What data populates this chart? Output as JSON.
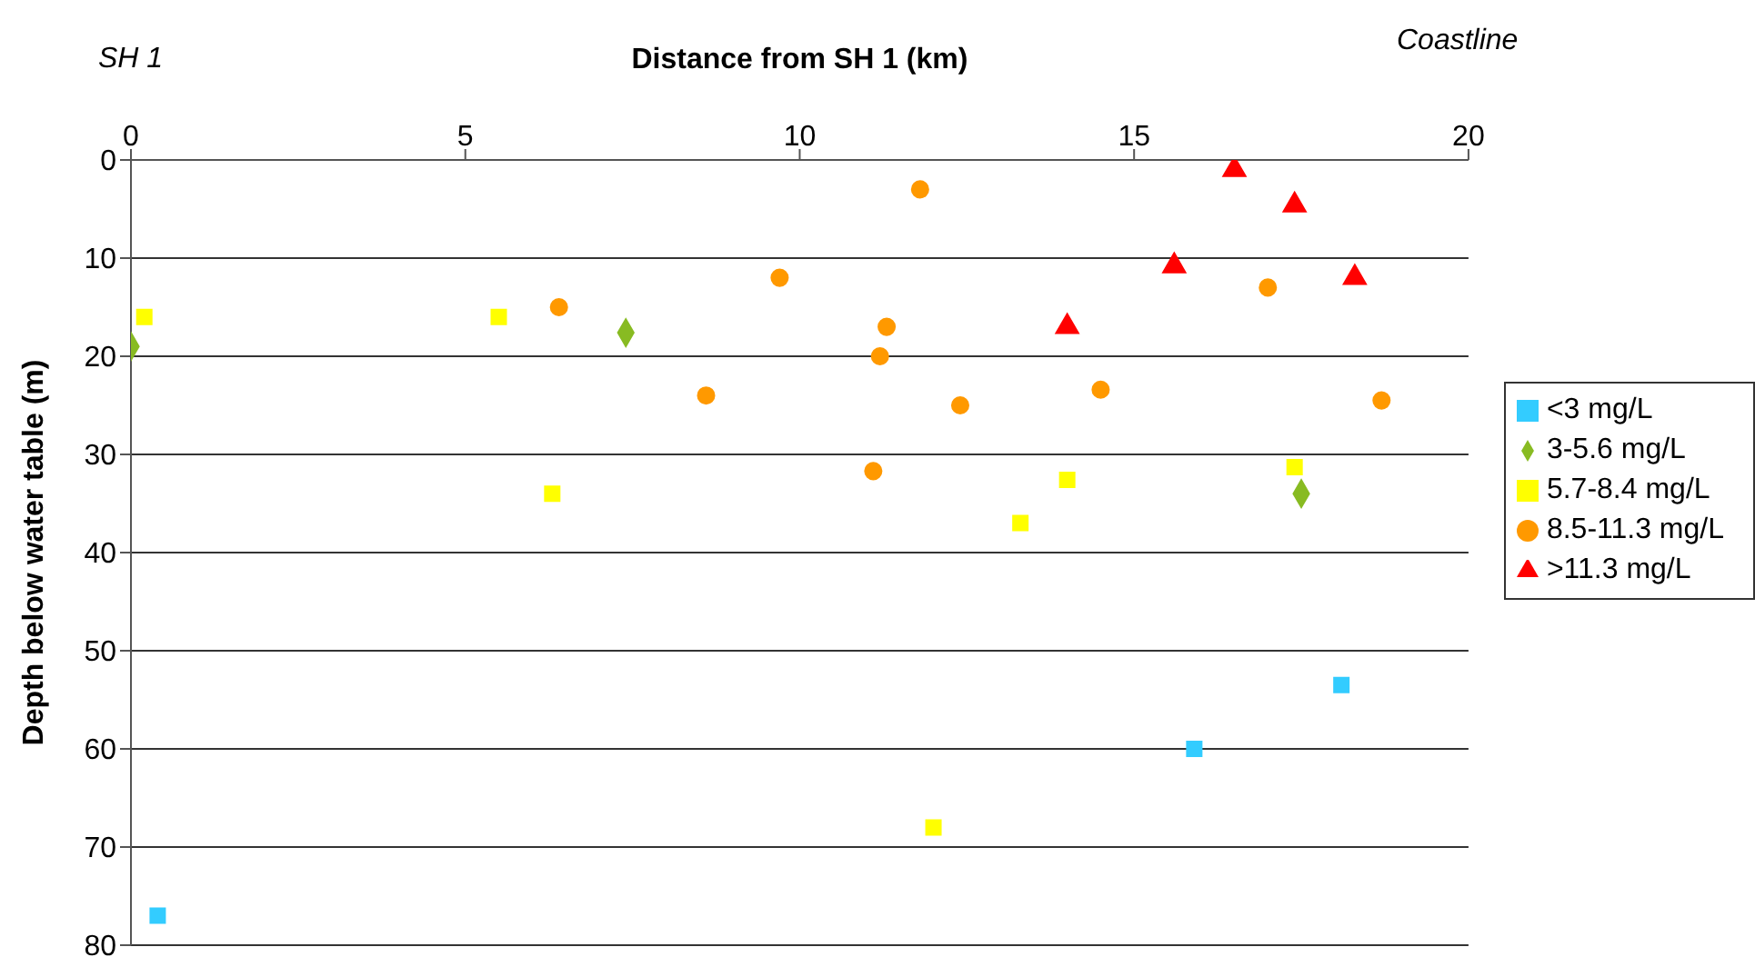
{
  "chart_data": {
    "type": "scatter",
    "xlabel": "Distance from SH 1 (km)",
    "ylabel": "Depth below water table (m)",
    "annotations": [
      "SH 1",
      "Coastline"
    ],
    "xlim": [
      0,
      20
    ],
    "xticks": [
      0,
      5,
      10,
      15,
      20
    ],
    "ylim": [
      80,
      0
    ],
    "yticks": [
      0,
      10,
      20,
      30,
      40,
      50,
      60,
      70,
      80
    ],
    "grid": "y",
    "legend": "right",
    "series": [
      {
        "name": "<3 mg/L",
        "color": "#33ccff",
        "marker": "square",
        "x": [
          0.4,
          18.1,
          15.9
        ],
        "values": [
          77,
          53.5,
          60
        ]
      },
      {
        "name": "3-5.6 mg/L",
        "color": "#88bb22",
        "marker": "diamond",
        "x": [
          0,
          7.4,
          17.5
        ],
        "values": [
          19,
          17.6,
          34
        ]
      },
      {
        "name": "5.7-8.4 mg/L",
        "color": "#ffff00",
        "marker": "square",
        "x": [
          0.2,
          5.5,
          6.3,
          12,
          13.3,
          14,
          17.4
        ],
        "values": [
          16,
          16,
          34,
          68,
          37,
          32.6,
          31.3
        ]
      },
      {
        "name": "8.5-11.3 mg/L",
        "color": "#ff9900",
        "marker": "circle",
        "x": [
          6.4,
          9.7,
          8.6,
          11.8,
          11.3,
          11.2,
          11.1,
          12.4,
          14.5,
          17,
          18.7
        ],
        "values": [
          15,
          12,
          24,
          3,
          17,
          20,
          31.7,
          25,
          23.4,
          13,
          24.5
        ]
      },
      {
        "name": ">11.3 mg/L",
        "color": "#ff0000",
        "marker": "triangle",
        "x": [
          16.5,
          17.4,
          15.6,
          18.3,
          14
        ],
        "values": [
          1,
          4.6,
          10.8,
          12,
          17
        ]
      }
    ]
  }
}
